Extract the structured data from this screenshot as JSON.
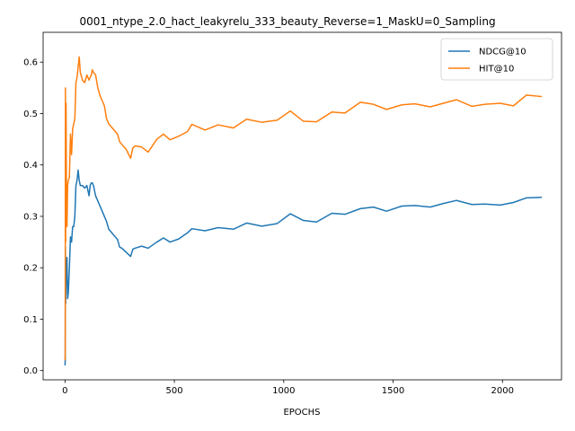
{
  "chart_data": {
    "type": "line",
    "title": "0001_ntype_2.0_hact_leakyrelu_333_beauty_Reverse=1_MaskU=0_Sampling",
    "xlabel": "EPOCHS",
    "ylabel": "",
    "xlim": [
      -100,
      2270
    ],
    "ylim": [
      -0.018,
      0.658
    ],
    "xticks": [
      0,
      500,
      1000,
      1500,
      2000
    ],
    "yticks": [
      0.0,
      0.1,
      0.2,
      0.3,
      0.4,
      0.5,
      0.6
    ],
    "grid": false,
    "legend_position": "top-right",
    "series": [
      {
        "name": "NDCG@10",
        "color": "#1f77b4",
        "x": [
          0,
          1,
          2,
          3,
          5,
          7,
          9,
          12,
          15,
          20,
          25,
          30,
          35,
          40,
          45,
          50,
          55,
          60,
          65,
          70,
          80,
          90,
          100,
          105,
          110,
          115,
          120,
          125,
          130,
          140,
          150,
          160,
          170,
          180,
          190,
          200,
          220,
          240,
          250,
          260,
          280,
          300,
          310,
          320,
          350,
          380,
          420,
          450,
          480,
          520,
          560,
          580,
          640,
          700,
          770,
          830,
          900,
          970,
          1030,
          1090,
          1150,
          1220,
          1280,
          1350,
          1410,
          1470,
          1540,
          1600,
          1670,
          1730,
          1790,
          1860,
          1920,
          1990,
          2050,
          2110,
          2180
        ],
        "y": [
          0.01,
          0.02,
          0.24,
          0.13,
          0.18,
          0.2,
          0.22,
          0.14,
          0.15,
          0.2,
          0.26,
          0.25,
          0.28,
          0.28,
          0.3,
          0.36,
          0.37,
          0.39,
          0.37,
          0.36,
          0.36,
          0.355,
          0.36,
          0.35,
          0.34,
          0.36,
          0.365,
          0.365,
          0.36,
          0.34,
          0.33,
          0.32,
          0.31,
          0.3,
          0.29,
          0.275,
          0.265,
          0.255,
          0.24,
          0.238,
          0.23,
          0.222,
          0.236,
          0.238,
          0.242,
          0.238,
          0.25,
          0.258,
          0.25,
          0.256,
          0.268,
          0.276,
          0.272,
          0.278,
          0.275,
          0.287,
          0.281,
          0.286,
          0.305,
          0.292,
          0.289,
          0.306,
          0.304,
          0.315,
          0.318,
          0.31,
          0.32,
          0.321,
          0.318,
          0.325,
          0.331,
          0.323,
          0.324,
          0.322,
          0.327,
          0.336,
          0.337
        ]
      },
      {
        "name": "HIT@10",
        "color": "#ff7f0e",
        "x": [
          0,
          1,
          2,
          3,
          5,
          7,
          9,
          12,
          15,
          20,
          25,
          30,
          35,
          40,
          45,
          50,
          55,
          60,
          65,
          70,
          80,
          90,
          100,
          105,
          110,
          115,
          120,
          125,
          130,
          140,
          150,
          160,
          170,
          180,
          190,
          200,
          220,
          240,
          250,
          260,
          280,
          300,
          310,
          320,
          350,
          380,
          420,
          450,
          480,
          520,
          560,
          580,
          640,
          700,
          770,
          830,
          900,
          970,
          1030,
          1090,
          1150,
          1220,
          1280,
          1350,
          1410,
          1470,
          1540,
          1600,
          1670,
          1730,
          1790,
          1860,
          1920,
          1990,
          2050,
          2110,
          2180
        ],
        "y": [
          0.02,
          0.03,
          0.55,
          0.25,
          0.52,
          0.3,
          0.28,
          0.36,
          0.37,
          0.375,
          0.46,
          0.42,
          0.47,
          0.48,
          0.49,
          0.56,
          0.57,
          0.59,
          0.61,
          0.58,
          0.565,
          0.56,
          0.575,
          0.57,
          0.565,
          0.57,
          0.575,
          0.585,
          0.58,
          0.575,
          0.55,
          0.535,
          0.525,
          0.515,
          0.49,
          0.48,
          0.47,
          0.46,
          0.445,
          0.44,
          0.43,
          0.413,
          0.433,
          0.437,
          0.435,
          0.425,
          0.45,
          0.46,
          0.449,
          0.456,
          0.465,
          0.479,
          0.468,
          0.478,
          0.472,
          0.489,
          0.483,
          0.487,
          0.505,
          0.485,
          0.484,
          0.503,
          0.501,
          0.522,
          0.518,
          0.508,
          0.517,
          0.519,
          0.513,
          0.52,
          0.527,
          0.514,
          0.518,
          0.52,
          0.515,
          0.536,
          0.533
        ]
      }
    ]
  }
}
